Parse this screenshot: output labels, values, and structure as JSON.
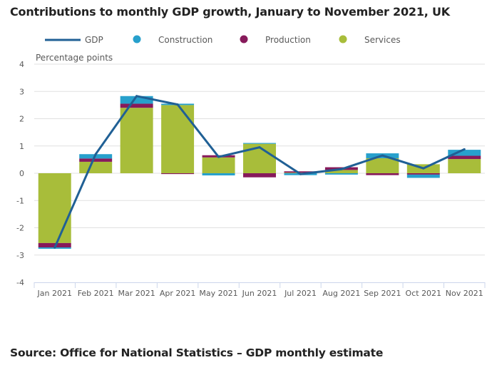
{
  "title": "Contributions to monthly GDP growth, January to November 2021, UK",
  "source": "Source: Office for National Statistics – GDP monthly estimate",
  "colors": {
    "gdp": "#206095",
    "construction": "#27a0cc",
    "production": "#871a5b",
    "services": "#a8bd3a",
    "grid": "#e0e0e0",
    "axis": "#ccd6eb"
  },
  "chart_data": {
    "type": "bar",
    "stacked": true,
    "title": "Contributions to monthly GDP growth, January to November 2021, UK",
    "xlabel": "",
    "ylabel": "Percentage points",
    "ylim": [
      -4,
      4
    ],
    "yticks": [
      4,
      3,
      2,
      1,
      0,
      -1,
      -2,
      -3,
      -4
    ],
    "grid": true,
    "legend_position": "top",
    "legend": [
      "GDP",
      "Construction",
      "Production",
      "Services"
    ],
    "categories": [
      "Jan 2021",
      "Feb 2021",
      "Mar 2021",
      "Apr 2021",
      "May 2021",
      "Jun 2021",
      "Jul 2021",
      "Aug 2021",
      "Sep 2021",
      "Oct 2021",
      "Nov 2021"
    ],
    "series": [
      {
        "name": "Services",
        "type": "bar",
        "values": [
          -2.56,
          0.42,
          2.4,
          2.5,
          0.58,
          1.08,
          0.02,
          0.12,
          0.55,
          0.33,
          0.52
        ]
      },
      {
        "name": "Production",
        "type": "bar",
        "values": [
          -0.16,
          0.12,
          0.15,
          -0.03,
          0.08,
          -0.15,
          0.05,
          0.1,
          -0.07,
          -0.05,
          0.12
        ]
      },
      {
        "name": "Construction",
        "type": "bar",
        "values": [
          -0.05,
          0.16,
          0.28,
          0.05,
          -0.08,
          0.03,
          -0.07,
          -0.05,
          0.18,
          -0.12,
          0.22
        ]
      },
      {
        "name": "GDP",
        "type": "line",
        "values": [
          -2.73,
          0.7,
          2.83,
          2.52,
          0.6,
          0.95,
          -0.03,
          0.15,
          0.65,
          0.18,
          0.88
        ]
      }
    ]
  }
}
